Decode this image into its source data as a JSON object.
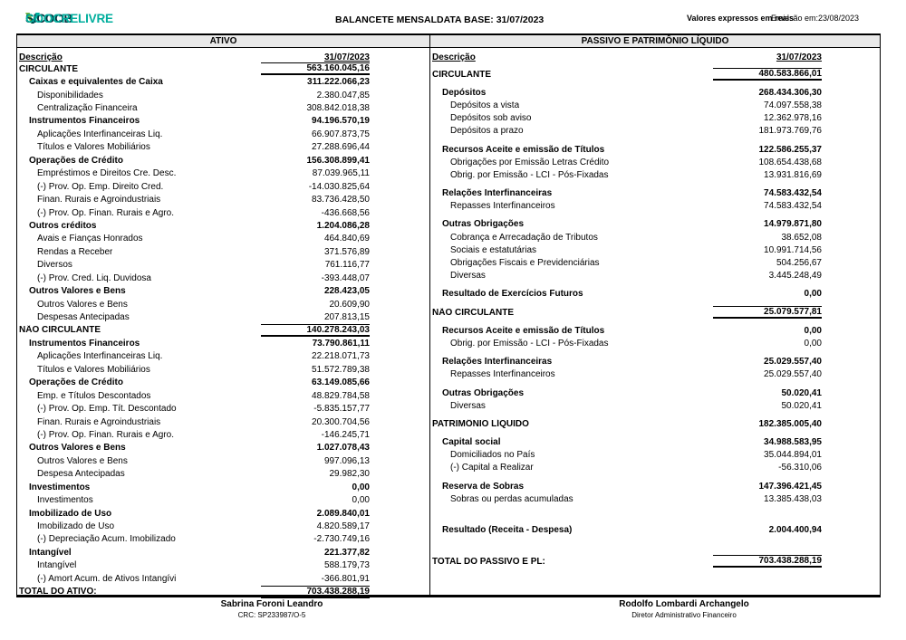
{
  "header": {
    "logo_brand": "SICOOB",
    "logo_sub": "COOCRELIVRE",
    "logo_colors": {
      "brand": "#003641",
      "sub": "#00ae9d",
      "mark_green": "#6fb643",
      "mark_teal": "#00ae9d"
    },
    "title": "BALANCETE MENSAL",
    "data_base": "DATA BASE: 31/07/2023",
    "currency_note": "Valores expressos em reais",
    "emission": "Emissão em:23/08/2023"
  },
  "left_table": {
    "section_title": "ATIVO",
    "col_label": "Descrição",
    "col_value": "31/07/2023",
    "rows": [
      {
        "t": "section",
        "l": "CIRCULANTE",
        "v": "563.160.045,16"
      },
      {
        "t": "group",
        "l": "Caixas e equivalentes de Caixa",
        "v": "311.222.066,23"
      },
      {
        "t": "item",
        "l": "Disponibilidades",
        "v": "2.380.047,85"
      },
      {
        "t": "item",
        "l": "Centralização Financeira",
        "v": "308.842.018,38"
      },
      {
        "t": "group",
        "l": "Instrumentos Financeiros",
        "v": "94.196.570,19"
      },
      {
        "t": "item",
        "l": "Aplicações Interfinanceiras Liq.",
        "v": "66.907.873,75"
      },
      {
        "t": "item",
        "l": "Títulos e Valores Mobiliários",
        "v": "27.288.696,44"
      },
      {
        "t": "group",
        "l": "Operações de Crédito",
        "v": "156.308.899,41"
      },
      {
        "t": "item",
        "l": "Empréstimos e Direitos Cre. Desc.",
        "v": "87.039.965,11"
      },
      {
        "t": "item",
        "l": "(-) Prov. Op. Emp. Direito Cred.",
        "v": "-14.030.825,64"
      },
      {
        "t": "item",
        "l": "Finan. Rurais e Agroindustriais",
        "v": "83.736.428,50"
      },
      {
        "t": "item",
        "l": "(-) Prov. Op. Finan. Rurais e Agro.",
        "v": "-436.668,56"
      },
      {
        "t": "group",
        "l": "Outros créditos",
        "v": "1.204.086,28"
      },
      {
        "t": "item",
        "l": "Avais e Fianças Honrados",
        "v": "464.840,69"
      },
      {
        "t": "item",
        "l": "Rendas a Receber",
        "v": "371.576,89"
      },
      {
        "t": "item",
        "l": "Diversos",
        "v": "761.116,77"
      },
      {
        "t": "item",
        "l": "(-) Prov. Cred. Liq. Duvidosa",
        "v": "-393.448,07"
      },
      {
        "t": "group",
        "l": "Outros Valores e Bens",
        "v": "228.423,05"
      },
      {
        "t": "item",
        "l": "Outros Valores e Bens",
        "v": "20.609,90"
      },
      {
        "t": "item",
        "l": "Despesas Antecipadas",
        "v": "207.813,15"
      },
      {
        "t": "section",
        "l": "NÃO CIRCULANTE",
        "v": "140.278.243,03"
      },
      {
        "t": "group",
        "l": "Instrumentos Financeiros",
        "v": "73.790.861,11"
      },
      {
        "t": "item",
        "l": "Aplicações Interfinanceiras Liq.",
        "v": "22.218.071,73"
      },
      {
        "t": "item",
        "l": "Títulos e Valores Mobiliários",
        "v": "51.572.789,38"
      },
      {
        "t": "group",
        "l": "Operações de Crédito",
        "v": "63.149.085,66"
      },
      {
        "t": "item",
        "l": "Emp. e Títulos Descontados",
        "v": "48.829.784,58"
      },
      {
        "t": "item",
        "l": "(-) Prov. Op. Emp. Tít. Descontado",
        "v": "-5.835.157,77"
      },
      {
        "t": "item",
        "l": "Finan. Rurais e Agroindustriais",
        "v": "20.300.704,56"
      },
      {
        "t": "item",
        "l": "(-) Prov. Op. Finan. Rurais e Agro.",
        "v": "-146.245,71"
      },
      {
        "t": "group",
        "l": "Outros Valores e Bens",
        "v": "1.027.078,43"
      },
      {
        "t": "item",
        "l": "Outros Valores e Bens",
        "v": "997.096,13"
      },
      {
        "t": "item",
        "l": "Despesa Antecipadas",
        "v": "29.982,30"
      },
      {
        "t": "group",
        "l": "Investimentos",
        "v": "0,00"
      },
      {
        "t": "item",
        "l": "Investimentos",
        "v": "0,00"
      },
      {
        "t": "group",
        "l": "Imobilizado de Uso",
        "v": "2.089.840,01"
      },
      {
        "t": "item",
        "l": "Imobilizado de Uso",
        "v": "4.820.589,17"
      },
      {
        "t": "item",
        "l": "(-) Depreciação Acum. Imobilizado",
        "v": "-2.730.749,16"
      },
      {
        "t": "group",
        "l": "Intangível",
        "v": "221.377,82"
      },
      {
        "t": "item",
        "l": "Intangível",
        "v": "588.179,73"
      },
      {
        "t": "item",
        "l": "(-) Amort Acum. de Ativos Intangívi",
        "v": "-366.801,91"
      },
      {
        "t": "total",
        "l": "TOTAL DO ATIVO:",
        "v": "703.438.288,19"
      }
    ]
  },
  "right_table": {
    "section_title": "PASSIVO E PATRIMÔNIO LÍQUIDO",
    "col_label": "Descrição",
    "col_value": "31/07/2023",
    "rows": [
      {
        "t": "section",
        "l": "CIRCULANTE",
        "v": "480.583.866,01"
      },
      {
        "t": "group",
        "l": "Depósitos",
        "v": "268.434.306,30"
      },
      {
        "t": "item",
        "l": "Depósitos a vista",
        "v": "74.097.558,38"
      },
      {
        "t": "item",
        "l": "Depósitos sob aviso",
        "v": "12.362.978,16"
      },
      {
        "t": "item",
        "l": "Depósitos a prazo",
        "v": "181.973.769,76"
      },
      {
        "t": "group",
        "l": "Recursos Aceite e emissão de Títulos",
        "v": "122.586.255,37"
      },
      {
        "t": "item",
        "l": "Obrigações por Emissão Letras Crédito",
        "v": "108.654.438,68"
      },
      {
        "t": "item",
        "l": "Obrig. por Emissão - LCI - Pós-Fixadas",
        "v": "13.931.816,69"
      },
      {
        "t": "group",
        "l": "Relações Interfinanceiras",
        "v": "74.583.432,54"
      },
      {
        "t": "item",
        "l": "Repasses Interfinanceiros",
        "v": "74.583.432,54"
      },
      {
        "t": "group",
        "l": "Outras Obrigações",
        "v": "14.979.871,80"
      },
      {
        "t": "item",
        "l": "Cobrança e Arrecadação de Tributos",
        "v": "38.652,08"
      },
      {
        "t": "item",
        "l": "Sociais e estatutárias",
        "v": "10.991.714,56"
      },
      {
        "t": "item",
        "l": "Obrigações Fiscais e Previdenciárias",
        "v": "504.256,67"
      },
      {
        "t": "item",
        "l": "Diversas",
        "v": "3.445.248,49"
      },
      {
        "t": "group",
        "l": "Resultado de Exercícios Futuros",
        "v": "0,00"
      },
      {
        "t": "section",
        "l": "NÃO CIRCULANTE",
        "v": "25.079.577,81"
      },
      {
        "t": "group",
        "l": "Recursos Aceite e emissão de Títulos",
        "v": "0,00"
      },
      {
        "t": "item",
        "l": "Obrig. por Emissão - LCI - Pós-Fixadas",
        "v": "0,00"
      },
      {
        "t": "group",
        "l": "Relações Interfinanceiras",
        "v": "25.029.557,40"
      },
      {
        "t": "item",
        "l": "Repasses Interfinanceiros",
        "v": "25.029.557,40"
      },
      {
        "t": "group",
        "l": "Outras Obrigações",
        "v": "50.020,41"
      },
      {
        "t": "item",
        "l": "Diversas",
        "v": "50.020,41"
      },
      {
        "t": "heading",
        "l": "PATRIMÔNIO LÍQUIDO",
        "v": "182.385.005,40"
      },
      {
        "t": "group",
        "l": "Capital social",
        "v": "34.988.583,95"
      },
      {
        "t": "item",
        "l": "Domiciliados no País",
        "v": "35.044.894,01"
      },
      {
        "t": "item",
        "l": "(-) Capital a Realizar",
        "v": "-56.310,06"
      },
      {
        "t": "group",
        "l": "Reserva de Sobras",
        "v": "147.396.421,45"
      },
      {
        "t": "item",
        "l": "Sobras ou perdas acumuladas",
        "v": "13.385.438,03"
      },
      {
        "t": "spacer",
        "l": "",
        "v": ""
      },
      {
        "t": "group",
        "l": "Resultado (Receita - Despesa)",
        "v": "2.004.400,94"
      },
      {
        "t": "spacer",
        "l": "",
        "v": ""
      },
      {
        "t": "total",
        "l": "TOTAL DO PASSIVO E PL:",
        "v": "703.438.288,19"
      }
    ]
  },
  "signatures": [
    {
      "name": "Sabrina Foroni Leandro",
      "role": "CRC: SP233987/O-5"
    },
    {
      "name": "Rodolfo Lombardi Archangelo",
      "role": "Diretor Administrativo Financeiro"
    }
  ]
}
